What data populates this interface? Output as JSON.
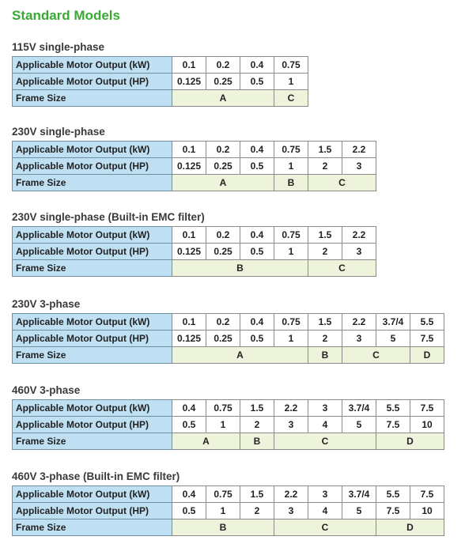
{
  "title": "Standard Models",
  "sections": [
    {
      "heading": "115V single-phase",
      "rows": [
        {
          "label": "Applicable Motor Output (kW)",
          "cells": [
            "0.1",
            "0.2",
            "0.4",
            "0.75"
          ]
        },
        {
          "label": "Applicable Motor Output (HP)",
          "cells": [
            "0.125",
            "0.25",
            "0.5",
            "1"
          ]
        }
      ],
      "frame": {
        "label": "Frame Size",
        "cells": [
          "A",
          null,
          null,
          "C"
        ]
      }
    },
    {
      "heading": "230V single-phase",
      "rows": [
        {
          "label": "Applicable Motor Output (kW)",
          "cells": [
            "0.1",
            "0.2",
            "0.4",
            "0.75",
            "1.5",
            "2.2"
          ]
        },
        {
          "label": "Applicable Motor Output (HP)",
          "cells": [
            "0.125",
            "0.25",
            "0.5",
            "1",
            "2",
            "3"
          ]
        }
      ],
      "frame": {
        "label": "Frame Size",
        "cells": [
          "A",
          null,
          null,
          "B",
          "C",
          null
        ]
      }
    },
    {
      "heading": "230V single-phase (Built-in EMC filter)",
      "rows": [
        {
          "label": "Applicable Motor Output (kW)",
          "cells": [
            "0.1",
            "0.2",
            "0.4",
            "0.75",
            "1.5",
            "2.2"
          ]
        },
        {
          "label": "Applicable Motor Output (HP)",
          "cells": [
            "0.125",
            "0.25",
            "0.5",
            "1",
            "2",
            "3"
          ]
        }
      ],
      "frame": {
        "label": "Frame Size",
        "cells": [
          "B",
          null,
          null,
          null,
          "C",
          null
        ]
      }
    },
    {
      "heading": "230V 3-phase",
      "rows": [
        {
          "label": "Applicable Motor Output (kW)",
          "cells": [
            "0.1",
            "0.2",
            "0.4",
            "0.75",
            "1.5",
            "2.2",
            "3.7/4",
            "5.5"
          ]
        },
        {
          "label": "Applicable Motor Output (HP)",
          "cells": [
            "0.125",
            "0.25",
            "0.5",
            "1",
            "2",
            "3",
            "5",
            "7.5"
          ]
        }
      ],
      "frame": {
        "label": "Frame Size",
        "cells": [
          "A",
          null,
          null,
          null,
          "B",
          "C",
          null,
          "D"
        ]
      }
    },
    {
      "heading": "460V 3-phase",
      "rows": [
        {
          "label": "Applicable Motor Output (kW)",
          "cells": [
            "0.4",
            "0.75",
            "1.5",
            "2.2",
            "3",
            "3.7/4",
            "5.5",
            "7.5"
          ]
        },
        {
          "label": "Applicable Motor Output (HP)",
          "cells": [
            "0.5",
            "1",
            "2",
            "3",
            "4",
            "5",
            "7.5",
            "10"
          ]
        }
      ],
      "frame": {
        "label": "Frame Size",
        "cells": [
          "A",
          null,
          "B",
          "C",
          null,
          null,
          "D",
          null
        ]
      }
    },
    {
      "heading": "460V 3-phase (Built-in EMC filter)",
      "rows": [
        {
          "label": "Applicable Motor Output (kW)",
          "cells": [
            "0.4",
            "0.75",
            "1.5",
            "2.2",
            "3",
            "3.7/4",
            "5.5",
            "7.5"
          ]
        },
        {
          "label": "Applicable Motor Output (HP)",
          "cells": [
            "0.5",
            "1",
            "2",
            "3",
            "4",
            "5",
            "7.5",
            "10"
          ]
        }
      ],
      "frame": {
        "label": "Frame Size",
        "cells": [
          "B",
          null,
          null,
          "C",
          null,
          null,
          "D",
          null
        ]
      }
    }
  ]
}
